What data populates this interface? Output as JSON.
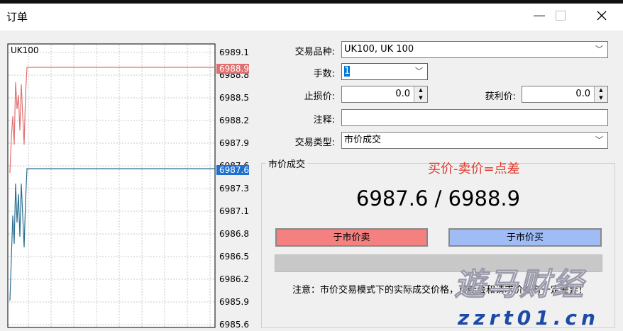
{
  "window": {
    "title": "订单"
  },
  "chart": {
    "symbol": "UK100",
    "price_labels": [
      "6989.1",
      "6988.8",
      "6988.5",
      "6988.2",
      "6987.9",
      "6987.6",
      "6987.3",
      "6987.1",
      "6986.8",
      "6986.5",
      "6986.2",
      "6985.9",
      "6985.6"
    ],
    "ask_label": "6988.9",
    "bid_label": "6987.6"
  },
  "form": {
    "symbol_label": "交易品种:",
    "symbol_value": "UK100, UK 100",
    "volume_label": "手数:",
    "volume_value": "1",
    "sl_label": "止损价:",
    "sl_value": "0.0",
    "tp_label": "获利价:",
    "tp_value": "0.0",
    "comment_label": "注释:",
    "type_label": "交易类型:",
    "type_value": "市价成交"
  },
  "market": {
    "group_title": "市价成交",
    "annotation": "买价-卖价=点差",
    "quote": "6987.6 / 6988.9",
    "sell_button": "于市价卖",
    "buy_button": "于市价买",
    "note": "注意：市价交易模式下的实际成交价格，可能会和请求价格有一定差异！"
  },
  "watermark": {
    "name": "遊马财经",
    "site": "zzrt01.cn"
  }
}
